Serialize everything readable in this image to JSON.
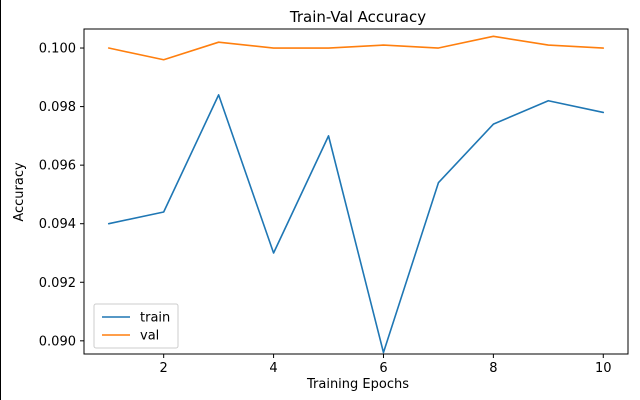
{
  "chart_data": {
    "type": "line",
    "title": "Train-Val Accuracy",
    "xlabel": "Training Epochs",
    "ylabel": "Accuracy",
    "xlim": [
      0.55,
      10.45
    ],
    "ylim": [
      0.08955,
      0.10065
    ],
    "xticks": [
      2,
      4,
      6,
      8,
      10
    ],
    "yticks": [
      0.09,
      0.092,
      0.094,
      0.096,
      0.098,
      0.1
    ],
    "ytick_labels": [
      "0.090",
      "0.092",
      "0.094",
      "0.096",
      "0.098",
      "0.100"
    ],
    "x": [
      1,
      2,
      3,
      4,
      5,
      6,
      7,
      8,
      9,
      10
    ],
    "series": [
      {
        "name": "train",
        "color": "#1f77b4",
        "values": [
          0.094,
          0.0944,
          0.0984,
          0.093,
          0.097,
          0.0896,
          0.0954,
          0.0974,
          0.0982,
          0.0978
        ]
      },
      {
        "name": "val",
        "color": "#ff7f0e",
        "values": [
          0.1,
          0.0996,
          0.1002,
          0.1,
          0.1,
          0.1001,
          0.1,
          0.1004,
          0.1001,
          0.1
        ]
      }
    ],
    "legend_position": "lower-left",
    "grid": false
  }
}
